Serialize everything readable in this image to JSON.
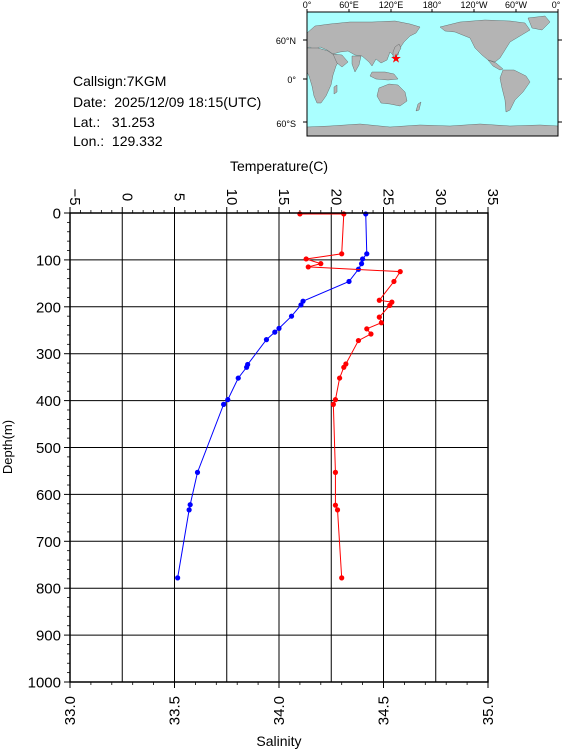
{
  "station": {
    "callsign_label": "Callsign:",
    "callsign": "7KGM",
    "date_label": "Date:",
    "date": "2025/12/09 18:15(UTC)",
    "lat_label": "Lat.:",
    "lat": "31.253",
    "lon_label": "Lon.:",
    "lon": "129.332"
  },
  "map": {
    "lon_ticks": [
      "0°",
      "60°E",
      "120°E",
      "180°",
      "120°W",
      "60°W",
      "0°"
    ],
    "lat_ticks": [
      "60°N",
      "0°",
      "60°S"
    ],
    "marker": {
      "lat": 31.253,
      "lon": 129.332
    },
    "colors": {
      "ocean": "#aaffff",
      "land": "#b4b4b4",
      "marker": "#ff0000"
    }
  },
  "chart_data": {
    "type": "line",
    "ylabel": "Depth(m)",
    "ylim": [
      0,
      1000
    ],
    "y_ticks": [
      0,
      100,
      200,
      300,
      400,
      500,
      600,
      700,
      800,
      900,
      1000
    ],
    "grid": true,
    "temperature_axis": {
      "label": "Temperature(C)",
      "range": [
        -5,
        35
      ],
      "ticks": [
        -5,
        0,
        5,
        10,
        15,
        20,
        25,
        30,
        35
      ],
      "position": "top"
    },
    "salinity_axis": {
      "label": "Salinity",
      "range": [
        33.0,
        35.0
      ],
      "ticks": [
        "33.0",
        "33.5",
        "34.0",
        "34.5",
        "35.0"
      ],
      "position": "bottom"
    },
    "series": [
      {
        "quantity": "temperature",
        "color": "#0000ff",
        "points": [
          {
            "depth": 2,
            "value": 23.3
          },
          {
            "depth": 87,
            "value": 23.4
          },
          {
            "depth": 98,
            "value": 23.0
          },
          {
            "depth": 108,
            "value": 22.9
          },
          {
            "depth": 120,
            "value": 22.6
          },
          {
            "depth": 146,
            "value": 21.7
          },
          {
            "depth": 188,
            "value": 17.3
          },
          {
            "depth": 196,
            "value": 17.1
          },
          {
            "depth": 220,
            "value": 16.2
          },
          {
            "depth": 246,
            "value": 15.0
          },
          {
            "depth": 254,
            "value": 14.6
          },
          {
            "depth": 270,
            "value": 13.8
          },
          {
            "depth": 323,
            "value": 12.0
          },
          {
            "depth": 329,
            "value": 11.9
          },
          {
            "depth": 352,
            "value": 11.1
          },
          {
            "depth": 398,
            "value": 10.1
          },
          {
            "depth": 408,
            "value": 9.7
          },
          {
            "depth": 553,
            "value": 7.2
          },
          {
            "depth": 622,
            "value": 6.5
          },
          {
            "depth": 633,
            "value": 6.4
          },
          {
            "depth": 778,
            "value": 5.3
          }
        ]
      },
      {
        "quantity": "salinity",
        "color": "#ff0000",
        "points": [
          {
            "depth": 2,
            "value": 34.1
          },
          {
            "depth": 2,
            "value": 34.31
          },
          {
            "depth": 87,
            "value": 34.3
          },
          {
            "depth": 98,
            "value": 34.13
          },
          {
            "depth": 108,
            "value": 34.2
          },
          {
            "depth": 115,
            "value": 34.14
          },
          {
            "depth": 125,
            "value": 34.58
          },
          {
            "depth": 146,
            "value": 34.55
          },
          {
            "depth": 186,
            "value": 34.48
          },
          {
            "depth": 190,
            "value": 34.54
          },
          {
            "depth": 197,
            "value": 34.53
          },
          {
            "depth": 222,
            "value": 34.48
          },
          {
            "depth": 234,
            "value": 34.49
          },
          {
            "depth": 247,
            "value": 34.42
          },
          {
            "depth": 258,
            "value": 34.44
          },
          {
            "depth": 272,
            "value": 34.38
          },
          {
            "depth": 322,
            "value": 34.32
          },
          {
            "depth": 329,
            "value": 34.31
          },
          {
            "depth": 352,
            "value": 34.29
          },
          {
            "depth": 398,
            "value": 34.27
          },
          {
            "depth": 408,
            "value": 34.26
          },
          {
            "depth": 553,
            "value": 34.27
          },
          {
            "depth": 623,
            "value": 34.27
          },
          {
            "depth": 633,
            "value": 34.28
          },
          {
            "depth": 778,
            "value": 34.3
          }
        ]
      }
    ]
  }
}
